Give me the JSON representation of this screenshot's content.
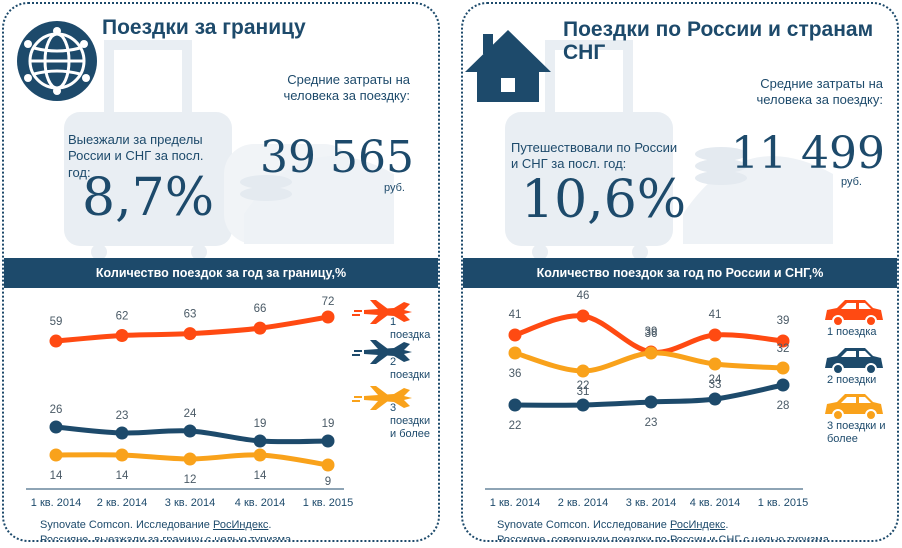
{
  "left": {
    "title": "Поездки за границу",
    "cost_label": "Средние затраты на человека за поездку:",
    "cost_value": "39 565",
    "cost_unit": "руб.",
    "share_label": "Выезжали за пределы России и СНГ за посл. год:",
    "share_value": "8,7%",
    "bar_title": "Количество поездок за год за границу,%",
    "source_line1_prefix": "Synovate Comcon. Исследование ",
    "source_line1_link": "РосИндекс",
    "source_line1_suffix": ".",
    "source_line2": "Россияне, выезжали за границу с целью туризма",
    "legend": [
      "1 поездка",
      "2 поездки",
      "3 поездки и более"
    ],
    "legend_icon": "airplane-icon"
  },
  "right": {
    "title": "Поездки по России и странам СНГ",
    "cost_label": "Средние затраты на человека за поездку:",
    "cost_value": "11 499",
    "cost_unit": "руб.",
    "share_label": "Путешествовали по России и СНГ за посл. год:",
    "share_value": "10,6%",
    "bar_title": "Количество поездок за год по России и СНГ,%",
    "source_line1_prefix": "Synovate Comcon. Исследование ",
    "source_line1_link": "РосИндекс",
    "source_line1_suffix": ".",
    "source_line2": "Россияне, совершали поездки по России и СНГ с целью туризма",
    "legend": [
      "1 поездка",
      "2 поездки",
      "3 поездки и более"
    ],
    "legend_icon": "car-icon"
  },
  "colors": {
    "red": "#ff4a12",
    "navy": "#1d4a6b",
    "orange": "#f9a21b",
    "light": "#e9eef3"
  },
  "chart_data": [
    {
      "type": "line",
      "categories": [
        "1 кв. 2014",
        "2 кв. 2014",
        "3 кв. 2014",
        "4 кв. 2014",
        "1 кв. 2015"
      ],
      "series": [
        {
          "name": "1 поездка",
          "values": [
            59,
            62,
            63,
            66,
            72
          ]
        },
        {
          "name": "2 поездки",
          "values": [
            26,
            23,
            24,
            19,
            19
          ]
        },
        {
          "name": "3 поездки и более",
          "values": [
            14,
            14,
            12,
            14,
            9
          ]
        }
      ],
      "ylim": [
        0,
        80
      ]
    },
    {
      "type": "line",
      "categories": [
        "1 кв. 2014",
        "2 кв. 2014",
        "3 кв. 2014",
        "4 кв. 2014",
        "1 кв. 2015"
      ],
      "series": [
        {
          "name": "1 поездка",
          "values": [
            41,
            46,
            39,
            41,
            39
          ]
        },
        {
          "name": "2 поездки",
          "values": [
            22,
            22,
            23,
            24,
            28
          ]
        },
        {
          "name": "3 поездки и более",
          "values": [
            36,
            31,
            36,
            33,
            32
          ]
        }
      ]
    }
  ]
}
